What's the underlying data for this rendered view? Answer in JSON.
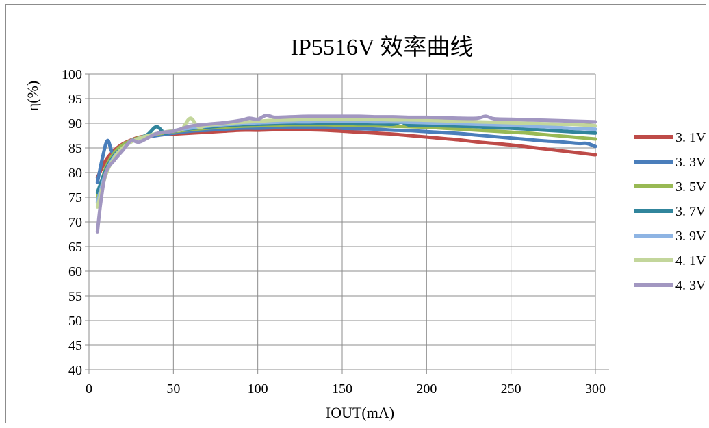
{
  "chart_data": {
    "type": "line",
    "title": "IP5516V 效率曲线",
    "xlabel": "IOUT(mA)",
    "ylabel": "η(%)",
    "xlim": [
      0,
      300
    ],
    "ylim": [
      40,
      100
    ],
    "xticks": [
      0,
      50,
      100,
      150,
      200,
      250,
      300
    ],
    "yticks": [
      40,
      45,
      50,
      55,
      60,
      65,
      70,
      75,
      80,
      85,
      90,
      95,
      100
    ],
    "grid": true,
    "legend_position": "right",
    "series": [
      {
        "name": "3. 1V",
        "color": "#be4b48",
        "x": [
          5,
          10,
          15,
          20,
          25,
          30,
          40,
          50,
          60,
          70,
          80,
          90,
          100,
          110,
          120,
          130,
          140,
          150,
          160,
          170,
          180,
          190,
          200,
          210,
          220,
          230,
          240,
          250,
          260,
          270,
          280,
          290,
          300
        ],
        "y": [
          79,
          82.5,
          84.5,
          85.8,
          86.6,
          87.2,
          87.6,
          87.8,
          88.0,
          88.2,
          88.4,
          88.6,
          88.6,
          88.7,
          88.8,
          88.7,
          88.6,
          88.4,
          88.2,
          88.0,
          87.8,
          87.5,
          87.2,
          86.9,
          86.6,
          86.2,
          85.9,
          85.6,
          85.2,
          84.8,
          84.4,
          84.0,
          83.6
        ]
      },
      {
        "name": "3. 3V",
        "color": "#4a7ebb",
        "x": [
          5,
          8,
          11,
          14,
          18,
          22,
          26,
          30,
          40,
          50,
          60,
          70,
          80,
          90,
          100,
          110,
          120,
          130,
          140,
          150,
          160,
          170,
          180,
          190,
          200,
          210,
          220,
          230,
          240,
          250,
          260,
          270,
          280,
          290,
          295,
          300
        ],
        "y": [
          78,
          83,
          86.5,
          84,
          84.8,
          85.8,
          86.5,
          87,
          87.5,
          88.0,
          88.4,
          88.6,
          88.8,
          89.0,
          89.0,
          89.1,
          89.2,
          89.2,
          89.2,
          89.0,
          88.9,
          88.8,
          88.6,
          88.5,
          88.3,
          88.1,
          87.9,
          87.6,
          87.3,
          87.0,
          86.7,
          86.4,
          86.2,
          85.9,
          85.9,
          85.3
        ]
      },
      {
        "name": "3. 5V",
        "color": "#98b954",
        "x": [
          5,
          10,
          15,
          20,
          25,
          30,
          40,
          50,
          60,
          70,
          80,
          90,
          100,
          110,
          120,
          130,
          140,
          150,
          160,
          170,
          180,
          190,
          200,
          210,
          220,
          230,
          240,
          250,
          260,
          270,
          280,
          290,
          300
        ],
        "y": [
          75,
          81,
          84,
          85.6,
          86.5,
          87.1,
          87.8,
          88.3,
          88.7,
          89.0,
          89.2,
          89.4,
          89.5,
          89.6,
          89.7,
          89.7,
          89.7,
          89.6,
          89.6,
          89.5,
          89.4,
          89.3,
          89.2,
          89.0,
          88.8,
          88.6,
          88.4,
          88.2,
          88.0,
          87.7,
          87.4,
          87.1,
          86.8
        ]
      },
      {
        "name": "3. 7V",
        "color": "#31859c",
        "x": [
          5,
          10,
          15,
          20,
          25,
          30,
          35,
          40,
          45,
          50,
          60,
          70,
          80,
          90,
          100,
          110,
          120,
          130,
          140,
          150,
          160,
          170,
          180,
          185,
          190,
          200,
          210,
          220,
          230,
          240,
          250,
          260,
          270,
          280,
          290,
          300
        ],
        "y": [
          76,
          80.5,
          83.5,
          85,
          86.3,
          87,
          87.8,
          89.3,
          88.0,
          88.4,
          88.9,
          89.2,
          89.5,
          89.7,
          89.8,
          89.9,
          90.0,
          90.0,
          90.0,
          90.0,
          89.9,
          89.9,
          89.8,
          90.2,
          89.6,
          89.6,
          89.5,
          89.4,
          89.3,
          89.1,
          89.0,
          88.8,
          88.6,
          88.4,
          88.2,
          88.0
        ]
      },
      {
        "name": "3. 9V",
        "color": "#8eb4e3",
        "x": [
          5,
          10,
          15,
          20,
          25,
          30,
          40,
          50,
          60,
          70,
          80,
          90,
          100,
          110,
          120,
          130,
          140,
          150,
          160,
          170,
          180,
          190,
          200,
          210,
          220,
          230,
          240,
          250,
          260,
          270,
          280,
          290,
          300
        ],
        "y": [
          74,
          80,
          83.2,
          85,
          86.2,
          87,
          87.9,
          88.5,
          89.0,
          89.4,
          89.7,
          89.9,
          90.1,
          90.2,
          90.3,
          90.3,
          90.4,
          90.4,
          90.4,
          90.3,
          90.3,
          90.2,
          90.1,
          90.0,
          89.9,
          89.8,
          89.7,
          89.6,
          89.4,
          89.3,
          89.1,
          88.9,
          88.8
        ]
      },
      {
        "name": "4. 1V",
        "color": "#c3d69b",
        "x": [
          5,
          10,
          15,
          20,
          25,
          30,
          40,
          50,
          55,
          60,
          65,
          70,
          80,
          90,
          100,
          110,
          120,
          130,
          140,
          150,
          160,
          170,
          180,
          190,
          200,
          210,
          220,
          230,
          240,
          250,
          260,
          270,
          280,
          290,
          300
        ],
        "y": [
          73,
          79.5,
          83,
          85,
          86.2,
          87,
          87.9,
          88.5,
          88.8,
          91,
          89.2,
          89.6,
          89.9,
          90.2,
          90.4,
          90.6,
          90.7,
          90.8,
          90.8,
          90.8,
          90.8,
          90.8,
          90.7,
          90.7,
          90.6,
          90.5,
          90.4,
          90.3,
          90.2,
          90.1,
          90.0,
          89.9,
          89.8,
          89.7,
          89.5
        ]
      },
      {
        "name": "4. 3V",
        "color": "#a297c1",
        "x": [
          5,
          7,
          10,
          15,
          20,
          25,
          30,
          40,
          50,
          60,
          70,
          80,
          90,
          95,
          100,
          105,
          110,
          120,
          130,
          140,
          150,
          160,
          170,
          180,
          190,
          200,
          210,
          220,
          230,
          235,
          240,
          250,
          260,
          270,
          280,
          290,
          300
        ],
        "y": [
          68,
          74,
          80,
          82.5,
          84.5,
          86.5,
          86.2,
          87.9,
          88.4,
          89.4,
          89.8,
          90.1,
          90.6,
          91.0,
          90.8,
          91.6,
          91.2,
          91.3,
          91.4,
          91.4,
          91.4,
          91.4,
          91.3,
          91.3,
          91.2,
          91.2,
          91.1,
          91.0,
          91.0,
          91.4,
          90.9,
          90.8,
          90.7,
          90.6,
          90.5,
          90.4,
          90.3
        ]
      }
    ]
  }
}
